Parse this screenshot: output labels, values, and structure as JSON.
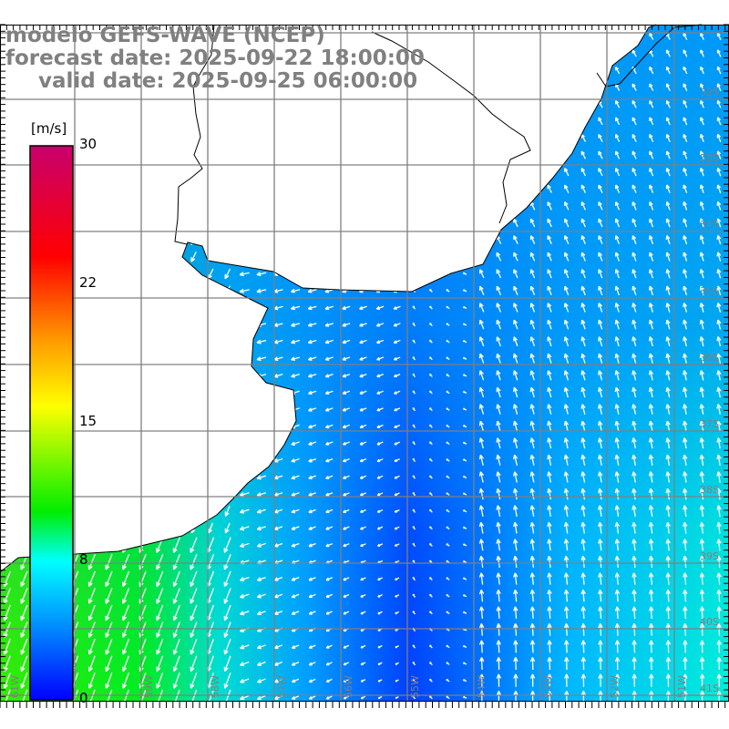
{
  "title": {
    "model": "modelo GEFS-WAVE (NCEP)",
    "forecast": "forecast date: 2025-09-22 18:00:00",
    "valid": "valid date: 2025-09-25 06:00:00"
  },
  "colorbar": {
    "unit": "[m/s]",
    "ticks": [
      "30",
      "22",
      "15",
      "8",
      "0"
    ],
    "colors": [
      "#c8006e",
      "#ff0000",
      "#ff9900",
      "#ffff00",
      "#00ee00",
      "#00ffff",
      "#0080ff",
      "#0000ff"
    ]
  },
  "lat_labels": [
    "32S",
    "33S",
    "34S",
    "35S",
    "36S",
    "37S",
    "38S",
    "39S",
    "40S",
    "41S"
  ],
  "lon_labels": [
    "61W",
    "60W",
    "59W",
    "58W",
    "57W",
    "56W",
    "55W",
    "54W",
    "53W",
    "52W",
    "51W"
  ]
}
